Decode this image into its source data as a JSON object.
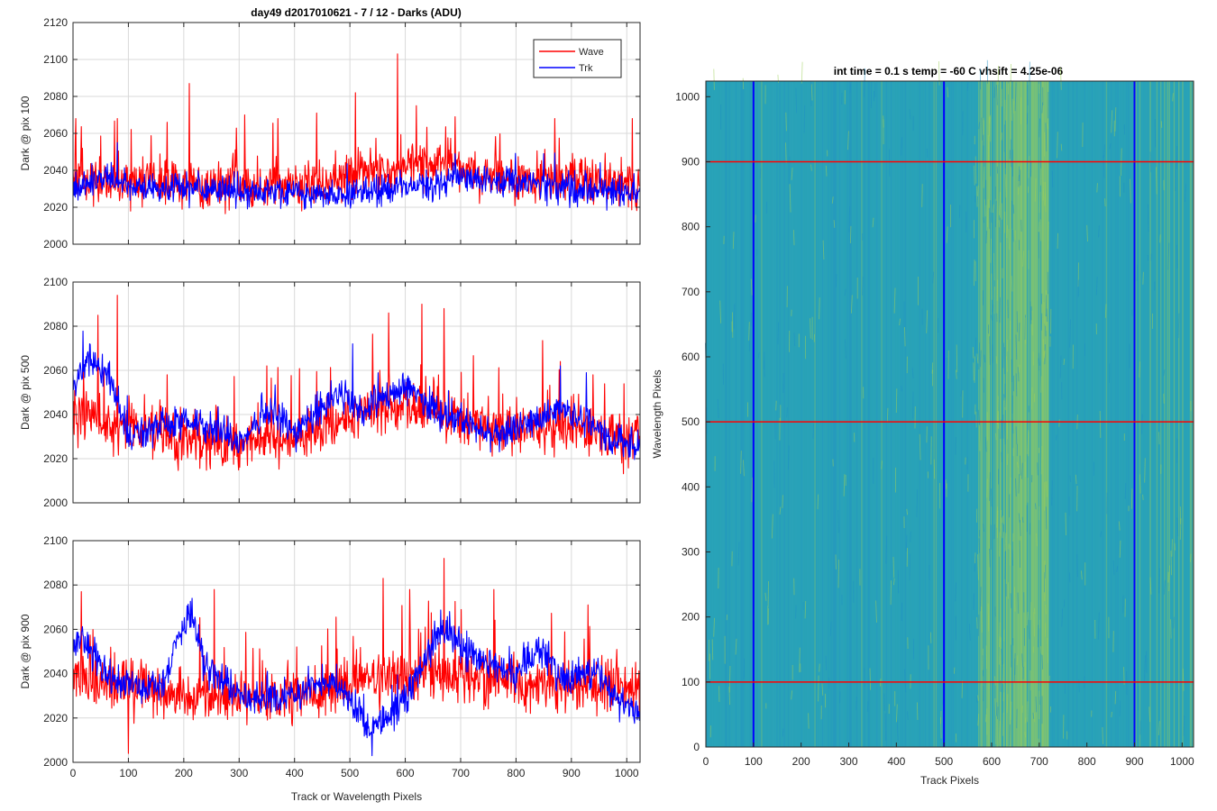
{
  "figure": {
    "title": "day49 d2017010621 - 7 / 12 - Darks (ADU)",
    "heatmap_title": "int time = 0.1 s   temp = -60 C   vhsift = 4.25e-06"
  },
  "colors": {
    "wave": "#ff0000",
    "trk": "#0000ff",
    "grid": "#d9d9d9",
    "axis": "#262626",
    "heat_low": "#1f8fc4",
    "heat_mid": "#2aa3b8",
    "heat_high": "#9ccf5a"
  },
  "chart_data": [
    {
      "type": "line",
      "title": "day49 d2017010621 - 7 / 12 - Darks (ADU)",
      "xlabel": "",
      "ylabel": "Dark @ pix 100",
      "xlim": [
        0,
        1024
      ],
      "ylim": [
        2000,
        2120
      ],
      "xticks": [
        "0",
        "100",
        "200",
        "300",
        "400",
        "500",
        "600",
        "700",
        "800",
        "900",
        "1000"
      ],
      "yticks": [
        "2000",
        "2020",
        "2040",
        "2060",
        "2080",
        "2100",
        "2120"
      ],
      "grid": true,
      "legend": {
        "position": "top-right",
        "entries": [
          "Wave",
          "Trk"
        ]
      },
      "series": [
        {
          "name": "Wave",
          "color": "#ff0000",
          "mean": 2034,
          "noise": 9,
          "spikes": 0.06,
          "profile": [
            [
              0,
              2034
            ],
            [
              100,
              2034
            ],
            [
              200,
              2033
            ],
            [
              300,
              2031
            ],
            [
              400,
              2032
            ],
            [
              500,
              2036
            ],
            [
              560,
              2040
            ],
            [
              620,
              2045
            ],
            [
              680,
              2043
            ],
            [
              760,
              2036
            ],
            [
              850,
              2035
            ],
            [
              950,
              2034
            ],
            [
              1024,
              2031
            ]
          ],
          "peaks": [
            [
              5,
              2068
            ],
            [
              80,
              2068
            ],
            [
              170,
              2066
            ],
            [
              210,
              2087
            ],
            [
              310,
              2070
            ],
            [
              370,
              2068
            ],
            [
              440,
              2071
            ],
            [
              510,
              2082
            ],
            [
              586,
              2103
            ],
            [
              620,
              2075
            ],
            [
              690,
              2069
            ],
            [
              870,
              2068
            ],
            [
              1010,
              2068
            ]
          ]
        },
        {
          "name": "Trk",
          "color": "#0000ff",
          "mean": 2030,
          "noise": 5.5,
          "spikes": 0.01,
          "profile": [
            [
              0,
              2030
            ],
            [
              60,
              2036
            ],
            [
              120,
              2030
            ],
            [
              300,
              2029
            ],
            [
              460,
              2027
            ],
            [
              560,
              2030
            ],
            [
              620,
              2031
            ],
            [
              700,
              2036
            ],
            [
              850,
              2032
            ],
            [
              1024,
              2027
            ]
          ],
          "peaks": [
            [
              80,
              2055
            ],
            [
              690,
              2049
            ],
            [
              850,
              2049
            ]
          ]
        }
      ]
    },
    {
      "type": "line",
      "xlabel": "",
      "ylabel": "Dark @ pix 500",
      "xlim": [
        0,
        1024
      ],
      "ylim": [
        2000,
        2100
      ],
      "xticks": [
        "0",
        "100",
        "200",
        "300",
        "400",
        "500",
        "600",
        "700",
        "800",
        "900",
        "1000"
      ],
      "yticks": [
        "2000",
        "2020",
        "2040",
        "2060",
        "2080",
        "2100"
      ],
      "grid": true,
      "series": [
        {
          "name": "Wave",
          "color": "#ff0000",
          "mean": 2032,
          "noise": 8.5,
          "spikes": 0.06,
          "profile": [
            [
              0,
              2040
            ],
            [
              80,
              2036
            ],
            [
              150,
              2030
            ],
            [
              300,
              2028
            ],
            [
              400,
              2030
            ],
            [
              500,
              2038
            ],
            [
              580,
              2044
            ],
            [
              660,
              2042
            ],
            [
              760,
              2034
            ],
            [
              900,
              2032
            ],
            [
              1024,
              2030
            ]
          ],
          "peaks": [
            [
              45,
              2085
            ],
            [
              80,
              2094
            ],
            [
              170,
              2058
            ],
            [
              350,
              2062
            ],
            [
              570,
              2086
            ],
            [
              630,
              2090
            ],
            [
              670,
              2088
            ],
            [
              880,
              2064
            ]
          ]
        },
        {
          "name": "Trk",
          "color": "#0000ff",
          "mean": 2032,
          "noise": 5.5,
          "spikes": 0.01,
          "profile": [
            [
              0,
              2050
            ],
            [
              30,
              2066
            ],
            [
              60,
              2060
            ],
            [
              100,
              2030
            ],
            [
              160,
              2035
            ],
            [
              200,
              2038
            ],
            [
              260,
              2033
            ],
            [
              300,
              2027
            ],
            [
              350,
              2040
            ],
            [
              400,
              2032
            ],
            [
              480,
              2050
            ],
            [
              520,
              2042
            ],
            [
              600,
              2052
            ],
            [
              660,
              2042
            ],
            [
              760,
              2030
            ],
            [
              880,
              2043
            ],
            [
              960,
              2030
            ],
            [
              1024,
              2025
            ]
          ],
          "peaks": [
            [
              30,
              2072
            ],
            [
              505,
              2072
            ],
            [
              880,
              2062
            ]
          ]
        }
      ]
    },
    {
      "type": "line",
      "xlabel": "Track or Wavelength Pixels",
      "ylabel": "Dark @ pix 900",
      "xlim": [
        0,
        1024
      ],
      "ylim": [
        2000,
        2100
      ],
      "xticks": [
        "0",
        "100",
        "200",
        "300",
        "400",
        "500",
        "600",
        "700",
        "800",
        "900",
        "1000"
      ],
      "yticks": [
        "2000",
        "2020",
        "2040",
        "2060",
        "2080",
        "2100"
      ],
      "grid": true,
      "series": [
        {
          "name": "Wave",
          "color": "#ff0000",
          "mean": 2034,
          "noise": 8.5,
          "spikes": 0.06,
          "profile": [
            [
              0,
              2040
            ],
            [
              100,
              2034
            ],
            [
              200,
              2030
            ],
            [
              300,
              2029
            ],
            [
              400,
              2030
            ],
            [
              500,
              2034
            ],
            [
              600,
              2040
            ],
            [
              700,
              2040
            ],
            [
              800,
              2036
            ],
            [
              900,
              2034
            ],
            [
              1024,
              2036
            ]
          ],
          "peaks": [
            [
              15,
              2077
            ],
            [
              100,
              2004
            ],
            [
              255,
              2078
            ],
            [
              560,
              2083
            ],
            [
              608,
              2078
            ],
            [
              670,
              2092
            ],
            [
              760,
              2078
            ],
            [
              930,
              2071
            ],
            [
              1024,
              2063
            ]
          ]
        },
        {
          "name": "Trk",
          "color": "#0000ff",
          "mean": 2034,
          "noise": 5.5,
          "spikes": 0.01,
          "profile": [
            [
              0,
              2050
            ],
            [
              20,
              2058
            ],
            [
              60,
              2038
            ],
            [
              100,
              2034
            ],
            [
              160,
              2034
            ],
            [
              210,
              2068
            ],
            [
              240,
              2044
            ],
            [
              300,
              2030
            ],
            [
              400,
              2030
            ],
            [
              470,
              2038
            ],
            [
              540,
              2015
            ],
            [
              600,
              2028
            ],
            [
              660,
              2060
            ],
            [
              720,
              2048
            ],
            [
              800,
              2040
            ],
            [
              840,
              2052
            ],
            [
              880,
              2038
            ],
            [
              940,
              2042
            ],
            [
              980,
              2028
            ],
            [
              1024,
              2022
            ]
          ],
          "peaks": [
            [
              215,
              2074
            ],
            [
              540,
              2003
            ],
            [
              680,
              2068
            ]
          ]
        }
      ]
    },
    {
      "type": "heatmap",
      "title": "int time = 0.1 s   temp = -60 C   vhsift = 4.25e-06",
      "xlabel": "Track Pixels",
      "ylabel": "Wavelength Pixels",
      "xlim": [
        0,
        1024
      ],
      "ylim": [
        0,
        1024
      ],
      "xticks": [
        "0",
        "100",
        "200",
        "300",
        "400",
        "500",
        "600",
        "700",
        "800",
        "900",
        "1000"
      ],
      "yticks": [
        "0",
        "100",
        "200",
        "300",
        "400",
        "500",
        "600",
        "700",
        "800",
        "900",
        "1000"
      ],
      "vertical_markers": [
        100,
        500,
        900
      ],
      "horizontal_markers": [
        100,
        500,
        900
      ],
      "vertical_marker_color": "#0000ff",
      "horizontal_marker_color": "#ff0000",
      "bright_band_x": [
        560,
        720
      ]
    }
  ]
}
